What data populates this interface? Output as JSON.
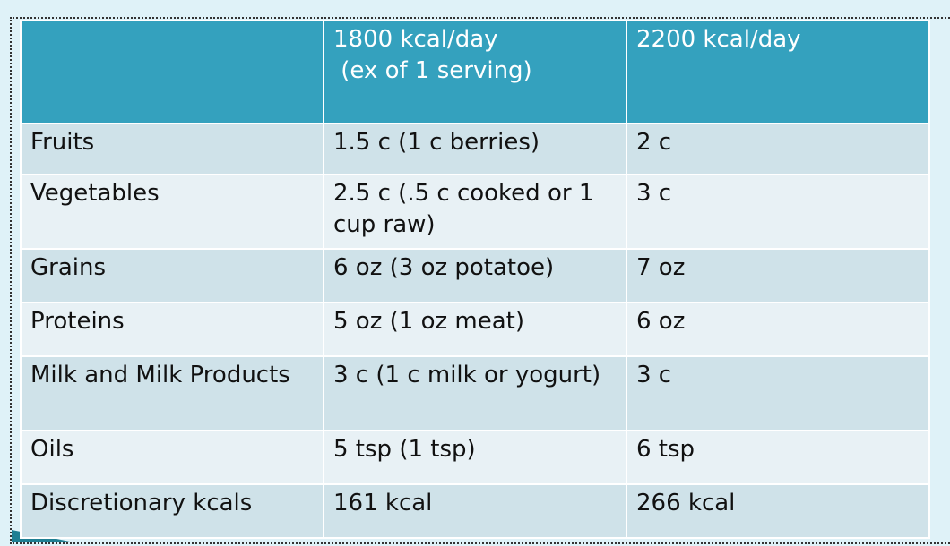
{
  "table": {
    "headers": {
      "col1": "",
      "col2_line1": "1800 kcal/day",
      "col2_line2": " (ex of 1 serving)",
      "col3": "2200 kcal/day"
    },
    "rows": [
      {
        "group": "Fruits",
        "kcal1800": "1.5 c  (1 c berries)",
        "kcal2200": "2 c"
      },
      {
        "group": "Vegetables",
        "kcal1800": "2.5 c  (.5 c cooked or 1 cup raw)",
        "kcal2200": "3 c"
      },
      {
        "group": "Grains",
        "kcal1800": "6 oz  (3 oz potatoe)",
        "kcal2200": "7 oz"
      },
      {
        "group": "Proteins",
        "kcal1800": "5 oz  (1 oz meat)",
        "kcal2200": "6 oz"
      },
      {
        "group": "Milk and Milk Products",
        "kcal1800": "3 c  (1 c milk or yogurt)",
        "kcal2200": "3 c"
      },
      {
        "group": "Oils",
        "kcal1800": "5 tsp (1 tsp)",
        "kcal2200": "6 tsp"
      },
      {
        "group": "Discretionary kcals",
        "kcal1800": "161 kcal",
        "kcal2200": "266 kcal"
      }
    ]
  },
  "colors": {
    "header": "#34a1be",
    "row_dark": "#cfe2e9",
    "row_light": "#e8f1f5",
    "background": "#dff2f8"
  }
}
